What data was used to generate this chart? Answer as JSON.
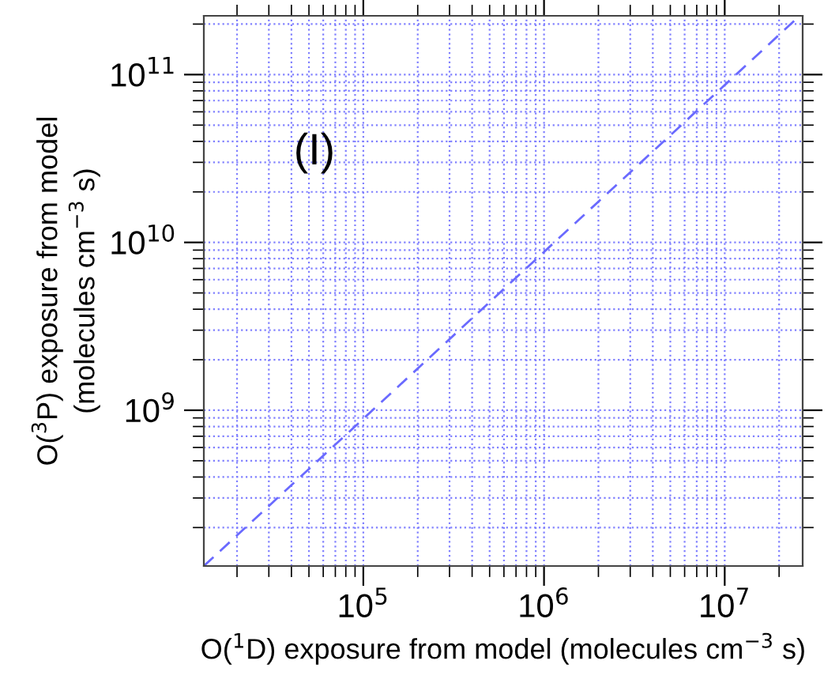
{
  "chart_data": {
    "type": "line",
    "xlabel": "O($^{1}$D) exposure from model (molecules cm$^{−3}$ s)",
    "ylabel": "O($^{3}$P) exposure from model\n(molecules cm$^{−3}$ s)",
    "annotations": [
      "(I)"
    ],
    "series": [
      {
        "x": [
          13100,
          26000000
        ],
        "values": [
          118000000,
          224000000000
        ],
        "color": "#6a6aff",
        "line_style": "dashed"
      }
    ],
    "log": "xy",
    "xlim": [
      13100,
      27000000
    ],
    "ylim": [
      118000000,
      224000000000
    ],
    "xticks": [
      {
        "value": 100000,
        "label": "10$^{5}$"
      },
      {
        "value": 1000000,
        "label": "10$^{6}$"
      },
      {
        "value": 10000000,
        "label": "10$^{7}$"
      }
    ],
    "yticks": [
      {
        "value": 1000000000,
        "label": "10$^{9}$"
      },
      {
        "value": 10000000000,
        "label": "10$^{10}$"
      },
      {
        "value": 100000000000,
        "label": "10$^{11}$"
      }
    ],
    "grid": true,
    "marker": "none"
  }
}
